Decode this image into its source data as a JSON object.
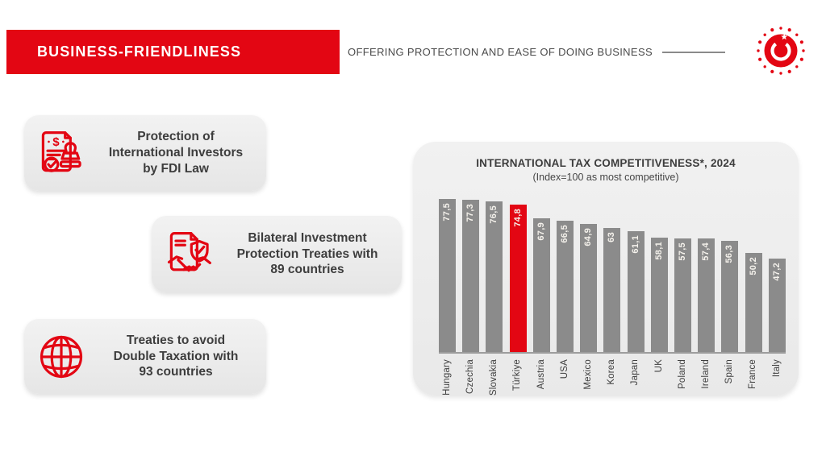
{
  "slide": {
    "header": {
      "title": "BUSINESS-FRIENDLINESS",
      "subtitle": "OFFERING PROTECTION AND EASE OF DOING BUSINESS",
      "logo": "invest-in-turkiye-emblem"
    },
    "cards": [
      {
        "icon": "document-dollar-stamp-icon",
        "text": "Protection of\nInternational Investors\nby FDI Law"
      },
      {
        "icon": "treaty-shield-handshake-icon",
        "text": "Bilateral Investment\nProtection Treaties with\n89 countries"
      },
      {
        "icon": "globe-icon",
        "text": "Treaties to avoid\nDouble Taxation with\n93 countries"
      }
    ],
    "colors": {
      "accent_red": "#e30613",
      "bar_gray": "#8b8b8b",
      "text_dark": "#3d3d3d",
      "panel_gray": "#ededed"
    }
  },
  "chart_data": {
    "type": "bar",
    "title": "INTERNATIONAL TAX COMPETITIVENESS*, 2024",
    "subtitle": "(Index=100 as most competitive)",
    "categories": [
      "Hungary",
      "Czechia",
      "Slovakia",
      "Türkiye",
      "Austria",
      "USA",
      "Mexico",
      "Korea",
      "Japan",
      "UK",
      "Poland",
      "Ireland",
      "Spain",
      "France",
      "Italy"
    ],
    "values": [
      77.5,
      77.3,
      76.5,
      74.8,
      67.9,
      66.5,
      64.9,
      63,
      61.1,
      58.1,
      57.5,
      57.4,
      56.3,
      50.2,
      47.2
    ],
    "value_labels": [
      "77,5",
      "77,3",
      "76,5",
      "74,8",
      "67,9",
      "66,5",
      "64,9",
      "63",
      "61,1",
      "58,1",
      "57,5",
      "57,4",
      "56,3",
      "50,2",
      "47,2"
    ],
    "highlight_category": "Türkiye",
    "bar_color": "#8b8b8b",
    "highlight_color": "#e30613",
    "value_label_color": "#f5f2ec",
    "ylim": [
      0,
      80
    ],
    "xlabel": "",
    "ylabel": "",
    "grid": false,
    "legend_position": "none"
  }
}
